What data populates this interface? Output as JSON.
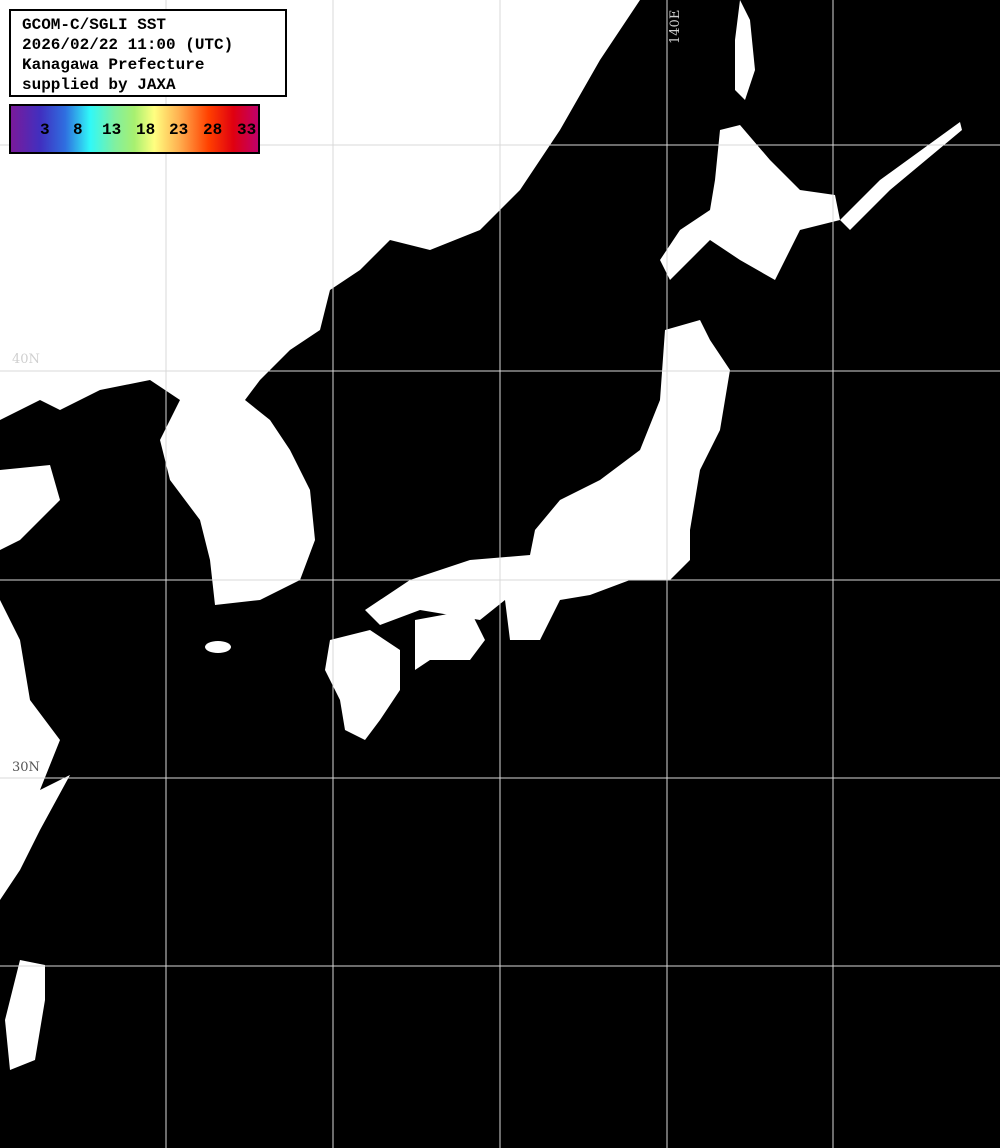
{
  "title_box": {
    "line1": "GCOM-C/SGLI SST",
    "line2": "2026/02/22 11:00 (UTC)",
    "line3": "Kanagawa Prefecture",
    "line4": "supplied by JAXA"
  },
  "colorbar": {
    "ticks": [
      "3",
      "8",
      "13",
      "18",
      "23",
      "28",
      "33"
    ],
    "colors": [
      "#7a1a9a",
      "#4030c0",
      "#30f8f8",
      "#a8f070",
      "#ffff80",
      "#ffb050",
      "#ff4000",
      "#e00010",
      "#c0006a"
    ]
  },
  "grid_labels": {
    "lon": "140E",
    "lat1": "40N",
    "lat2": "30N"
  },
  "colors": {
    "land": "#ffffff",
    "sea": "#000000",
    "grid": "#d8d8d8"
  }
}
